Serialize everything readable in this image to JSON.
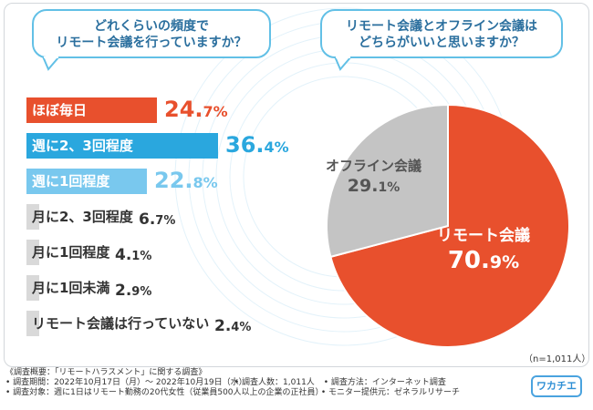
{
  "colors": {
    "orange": "#e8502d",
    "blue": "#2aa7de",
    "light_blue": "#79c8ee",
    "gray_bar": "#d9d9d9",
    "pie_gray": "#c4c4c4",
    "bubble_border": "#62c0e6",
    "bubble_text": "#2b6f9e"
  },
  "left_question": [
    "どれくらいの頻度で",
    "リモート会議を行っていますか？"
  ],
  "right_question": [
    "リモート会議とオフライン会議は",
    "どちらがいいと思いますか？"
  ],
  "bars": [
    {
      "label": "ほぼ毎日",
      "int": "24.",
      "dec": "7%",
      "style": "orange"
    },
    {
      "label": "週に2、3回程度",
      "int": "36.",
      "dec": "4%",
      "style": "blue"
    },
    {
      "label": "週に1回程度",
      "int": "22.",
      "dec": "8%",
      "style": "light_blue"
    },
    {
      "label": "月に2、3回程度",
      "int": "6.",
      "dec": "7%",
      "style": "gray"
    },
    {
      "label": "月に1回程度",
      "int": "4.",
      "dec": "1%",
      "style": "gray"
    },
    {
      "label": "月に1回未満",
      "int": "2.",
      "dec": "9%",
      "style": "gray"
    },
    {
      "label": "リモート会議は行っていない",
      "int": "2.",
      "dec": "4%",
      "style": "gray"
    }
  ],
  "pie": {
    "remote_label": "リモート会議",
    "remote_int": "70.",
    "remote_dec": "9%",
    "offline_label": "オフライン会議",
    "offline_int": "29.",
    "offline_dec": "1%"
  },
  "n_note": "（n=1,011人）",
  "footer": {
    "title": "《調査概要：「リモートハラスメント」に関する調査》",
    "period": "• 調査期間：2022年10月17日（月）～ 2022年10月19日（水）",
    "people": "• 調査人数：1,011人",
    "method": "• 調査方法：インターネット調査",
    "target": "• 調査対象：週に1日はリモート勤務の20代女性（従業員500人以上の企業の正社員）",
    "provider": "• モニター提供元：ゼネラルリサーチ"
  },
  "logo": "ワカチエ",
  "chart_data": [
    {
      "type": "bar",
      "title": "どれくらいの頻度でリモート会議を行っていますか？",
      "categories": [
        "ほぼ毎日",
        "週に2、3回程度",
        "週に1回程度",
        "月に2、3回程度",
        "月に1回程度",
        "月に1回未満",
        "リモート会議は行っていない"
      ],
      "values": [
        24.7,
        36.4,
        22.8,
        6.7,
        4.1,
        2.9,
        2.4
      ],
      "unit": "%",
      "orientation": "horizontal",
      "xlim": [
        0,
        36.4
      ]
    },
    {
      "type": "pie",
      "title": "リモート会議とオフライン会議はどちらがいいと思いますか？",
      "categories": [
        "リモート会議",
        "オフライン会議"
      ],
      "values": [
        70.9,
        29.1
      ],
      "unit": "%",
      "n": "1,011人"
    }
  ]
}
